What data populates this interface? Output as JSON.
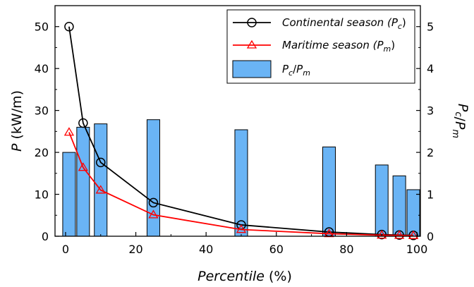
{
  "chart_data": {
    "type": "bar+line",
    "x_axis": {
      "label": "Percentile (%)",
      "ticks": [
        0,
        20,
        40,
        60,
        80,
        100
      ],
      "range": [
        -3,
        101
      ]
    },
    "y_left": {
      "label": "P (kW/m)",
      "ticks": [
        0,
        10,
        20,
        30,
        40,
        50
      ],
      "range": [
        0,
        55
      ]
    },
    "y_right": {
      "label": "Pc/Pm",
      "ticks": [
        0,
        1,
        2,
        3,
        4,
        5
      ],
      "range": [
        0,
        5.5
      ]
    },
    "series": [
      {
        "name": "Continental season (Pc)",
        "type": "line",
        "marker": "circle",
        "color": "#000000",
        "axis": "left",
        "x": [
          1,
          5,
          10,
          25,
          50,
          75,
          90,
          95,
          99
        ],
        "y": [
          50,
          27,
          17.6,
          8,
          2.7,
          1,
          0.4,
          0.3,
          0.2
        ]
      },
      {
        "name": "Maritime season (Pm)",
        "type": "line",
        "marker": "triangle",
        "color": "#ff0000",
        "axis": "left",
        "x": [
          1,
          5,
          10,
          25,
          50,
          75,
          90,
          95,
          99
        ],
        "y": [
          24.8,
          16.4,
          11,
          5.1,
          1.6,
          0.6,
          0.25,
          0.2,
          0.15
        ]
      },
      {
        "name": "Pc/Pm",
        "type": "bar",
        "color": "#6ab4f5",
        "axis": "right",
        "x": [
          1,
          5,
          10,
          25,
          50,
          75,
          90,
          95,
          99
        ],
        "y": [
          2.0,
          2.6,
          2.68,
          2.78,
          2.54,
          2.13,
          1.7,
          1.44,
          1.11
        ]
      }
    ],
    "legend": {
      "placement": "top-right",
      "entries": [
        {
          "main": "Continental season (",
          "var": "P",
          "sub": "c",
          "tail": ")"
        },
        {
          "main": "Maritime season (",
          "var": "P",
          "sub": "m",
          "tail": ")"
        },
        {
          "var": "P",
          "sub": "c",
          "sep": "/",
          "var2": "P",
          "sub2": "m"
        }
      ]
    },
    "grid": false
  }
}
